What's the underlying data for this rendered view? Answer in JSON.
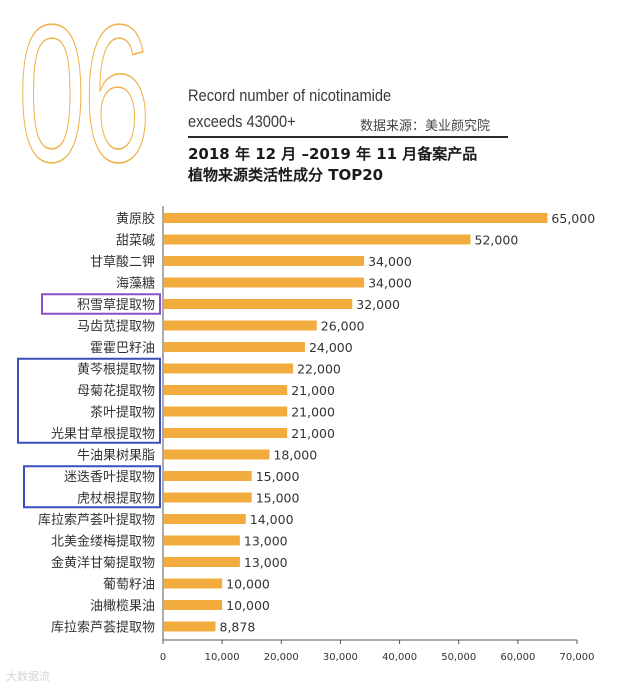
{
  "header": {
    "big_number": "06",
    "subtitle_line1": "Record number of nicotinamide",
    "subtitle_line2": "exceeds 43000+",
    "source": "数据来源：美业颜究院",
    "title_line1": "2018 年 12 月 –2019 年 11 月备案产品",
    "title_line2": "植物来源类活性成分 TOP20"
  },
  "watermark": "大数据流",
  "colors": {
    "bar": "#f2ac3d",
    "highlight_purple": "#8a4fcf",
    "highlight_blue": "#3b4fb8",
    "accent_outline": "#f0b14a"
  },
  "chart_data": {
    "type": "bar",
    "orientation": "horizontal",
    "title": "植物来源类活性成分 TOP20",
    "categories": [
      "黄原胶",
      "甜菜碱",
      "甘草酸二钾",
      "海藻糖",
      "积雪草提取物",
      "马齿苋提取物",
      "霍霍巴籽油",
      "黄芩根提取物",
      "母菊花提取物",
      "茶叶提取物",
      "光果甘草根提取物",
      "牛油果树果脂",
      "迷迭香叶提取物",
      "虎杖根提取物",
      "库拉索芦荟叶提取物",
      "北美金缕梅提取物",
      "金黄洋甘菊提取物",
      "葡萄籽油",
      "油橄榄果油",
      "库拉索芦荟提取物"
    ],
    "values": [
      65000,
      52000,
      34000,
      34000,
      32000,
      26000,
      24000,
      22000,
      21000,
      21000,
      21000,
      18000,
      15000,
      15000,
      14000,
      13000,
      13000,
      10000,
      10000,
      8878
    ],
    "value_labels": [
      "65,000",
      "52,000",
      "34,000",
      "34,000",
      "32,000",
      "26,000",
      "24,000",
      "22,000",
      "21,000",
      "21,000",
      "21,000",
      "18,000",
      "15,000",
      "15,000",
      "14,000",
      "13,000",
      "13,000",
      "10,000",
      "10,000",
      "8,878"
    ],
    "xlim": [
      0,
      70000
    ],
    "xticks": [
      0,
      10000,
      20000,
      30000,
      40000,
      50000,
      60000,
      70000
    ],
    "xtick_labels": [
      "0",
      "10,000",
      "20,000",
      "30,000",
      "40,000",
      "50,000",
      "60,000",
      "70,000"
    ],
    "highlight_groups": [
      {
        "color": "purple",
        "items": [
          "积雪草提取物"
        ]
      },
      {
        "color": "blue",
        "items": [
          "黄芩根提取物",
          "母菊花提取物",
          "茶叶提取物",
          "光果甘草根提取物"
        ]
      },
      {
        "color": "blue",
        "items": [
          "迷迭香叶提取物",
          "虎杖根提取物"
        ]
      }
    ]
  }
}
